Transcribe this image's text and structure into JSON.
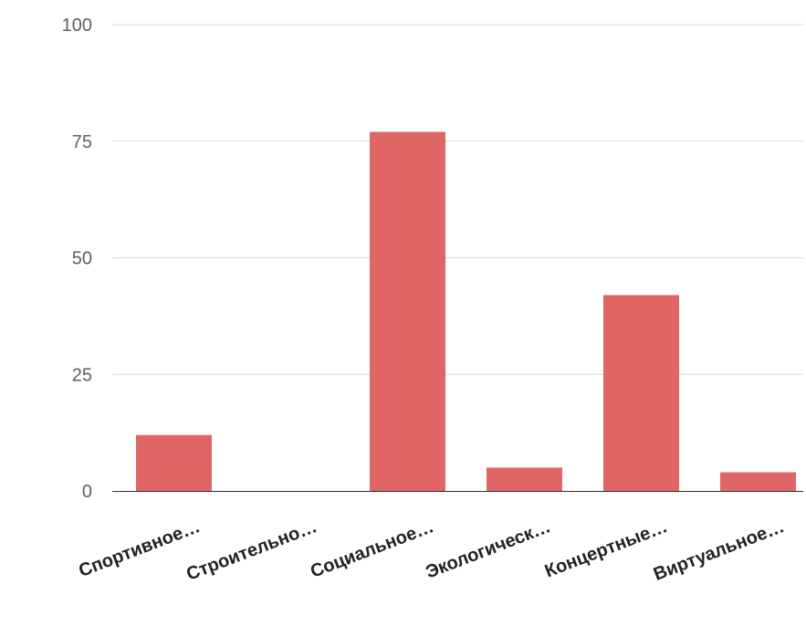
{
  "chart_data": {
    "type": "bar",
    "categories": [
      "Спортивное…",
      "Строительно…",
      "Социальное…",
      "Экологическ…",
      "Концертные…",
      "Виртуальное…"
    ],
    "values": [
      12,
      0,
      77,
      5,
      42,
      4
    ],
    "ylim": [
      0,
      100
    ],
    "yticks": [
      "0",
      "25",
      "50",
      "75",
      "100"
    ],
    "ytick_values": [
      0,
      25,
      50,
      75,
      100
    ],
    "grid": true,
    "legend": "none",
    "bar_color": "#e06666",
    "grid_color": "#d9d9d9",
    "axis_color": "#333333"
  }
}
